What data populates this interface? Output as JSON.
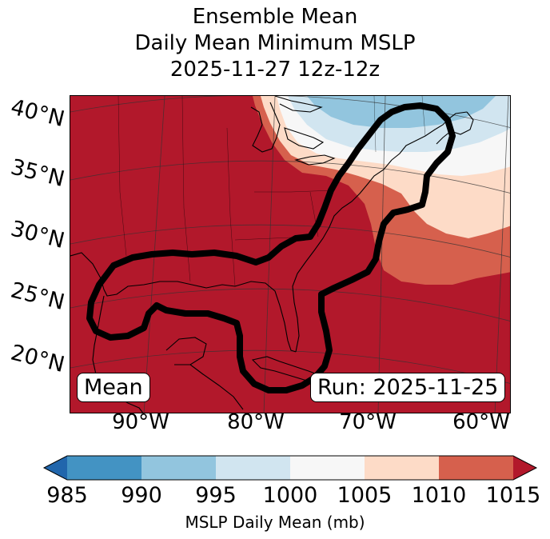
{
  "title": {
    "line1": "Ensemble Mean",
    "line2": "Daily Mean Minimum MSLP",
    "line3": "2025-11-27 12z-12z"
  },
  "map": {
    "lat_labels": [
      "40°N",
      "35°N",
      "30°N",
      "25°N",
      "20°N"
    ],
    "lon_labels": [
      "90°W",
      "80°W",
      "70°W",
      "60°W"
    ],
    "left_box": "Mean",
    "right_box": "Run: 2025-11-25",
    "colors": {
      "c985": "#2166ac",
      "c990": "#4393c3",
      "c995": "#92c5de",
      "c1000": "#d1e5f0",
      "c1005": "#f7f7f7",
      "c1010": "#fddbc7",
      "c1015": "#d6604d",
      "over": "#b2182b"
    }
  },
  "colorbar": {
    "ticks": [
      "985",
      "990",
      "995",
      "1000",
      "1005",
      "1010",
      "1015"
    ],
    "colors": [
      "#4393c3",
      "#92c5de",
      "#d1e5f0",
      "#f7f7f7",
      "#fddbc7",
      "#d6604d"
    ],
    "under_color": "#2166ac",
    "over_color": "#b2182b",
    "label": "MSLP Daily Mean (mb)"
  }
}
